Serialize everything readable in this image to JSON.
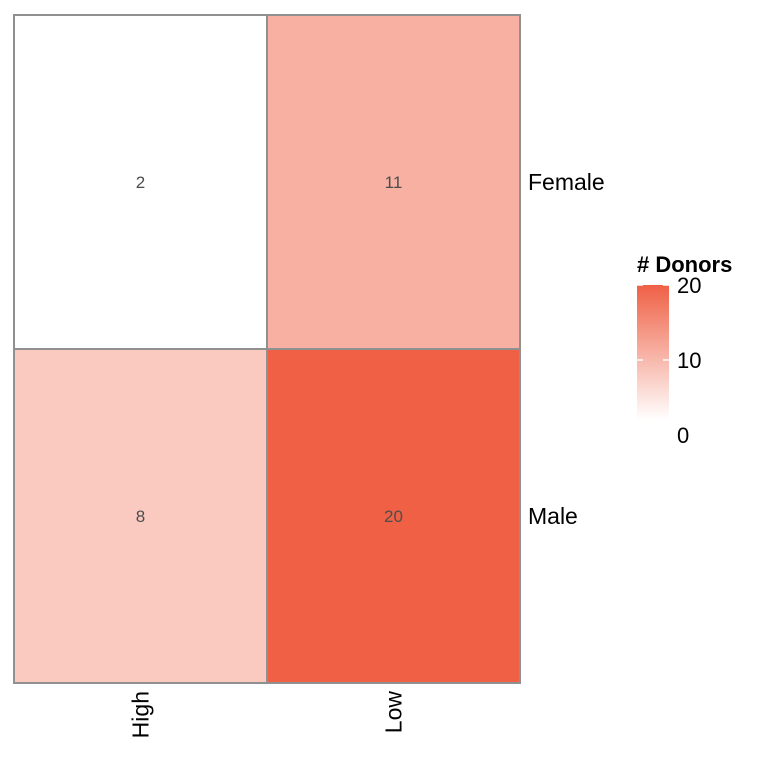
{
  "chart_data": {
    "type": "heatmap",
    "x_categories": [
      "High",
      "Low"
    ],
    "y_categories": [
      "Female",
      "Male"
    ],
    "values": [
      [
        2,
        11
      ],
      [
        8,
        20
      ]
    ],
    "legend": {
      "title": "# Donors",
      "ticks": [
        0,
        10,
        20
      ],
      "tick_labels": [
        "0",
        "10",
        "20"
      ],
      "range": [
        2,
        20
      ],
      "low_color": "#ffffff",
      "high_color": "#ef6045",
      "placement": "right"
    },
    "border_color": "#909090",
    "grid": false
  }
}
